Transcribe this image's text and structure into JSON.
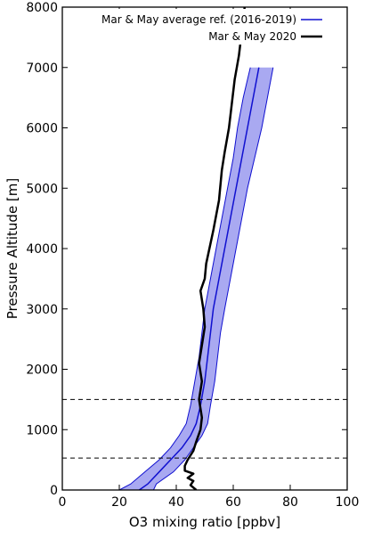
{
  "chart_data": {
    "type": "line",
    "xlabel": "O3 mixing ratio [ppbv]",
    "ylabel": "Pressure Altitude [m]",
    "xlim": [
      0,
      100
    ],
    "ylim": [
      0,
      8000
    ],
    "x_ticks": [
      "0",
      "20",
      "40",
      "60",
      "80",
      "100"
    ],
    "y_ticks": [
      "0",
      "1000",
      "2000",
      "3000",
      "4000",
      "5000",
      "6000",
      "7000",
      "8000"
    ],
    "grid": false,
    "legend_position": "top-right",
    "series": [
      {
        "name": "Mar & May average ref. (2016-2019)",
        "color": "#1010d0",
        "band_color": "#9a9aee",
        "x_mean": [
          27,
          30,
          34,
          38,
          42,
          45,
          47,
          48.5,
          50,
          51,
          52,
          53,
          55,
          57,
          59,
          61,
          63,
          65,
          67,
          69
        ],
        "x_lower": [
          20,
          24,
          29,
          34,
          38,
          41,
          43.5,
          45,
          46.5,
          48,
          49,
          50,
          52,
          54,
          56,
          58,
          60,
          61.5,
          63.5,
          66
        ],
        "x_upper": [
          32,
          33,
          39,
          43,
          46,
          49,
          51,
          52,
          53.5,
          54.5,
          55.5,
          57,
          59,
          61,
          63,
          65,
          67.5,
          70,
          72,
          74
        ],
        "y": [
          0,
          100,
          300,
          500,
          700,
          900,
          1100,
          1400,
          1800,
          2200,
          2600,
          3000,
          3500,
          4000,
          4500,
          5000,
          5500,
          6000,
          6500,
          7000
        ]
      },
      {
        "name": "Mar & May 2020",
        "color": "#000000",
        "x": [
          47,
          45,
          46,
          44,
          46,
          43,
          43,
          44,
          46,
          47,
          48.5,
          49,
          48,
          49,
          48,
          49,
          50,
          49.5,
          48.5,
          50,
          50.5,
          53,
          55,
          56,
          57,
          58.5,
          59.5,
          60.5,
          62,
          63,
          64
        ],
        "y": [
          0,
          80,
          150,
          200,
          270,
          320,
          400,
          500,
          650,
          800,
          1000,
          1200,
          1500,
          1800,
          2100,
          2400,
          2700,
          3000,
          3300,
          3500,
          3750,
          4300,
          4800,
          5300,
          5600,
          6000,
          6400,
          6800,
          7200,
          7600,
          8000
        ]
      }
    ],
    "reference_lines": [
      {
        "y": 530
      },
      {
        "y": 1500
      }
    ]
  }
}
